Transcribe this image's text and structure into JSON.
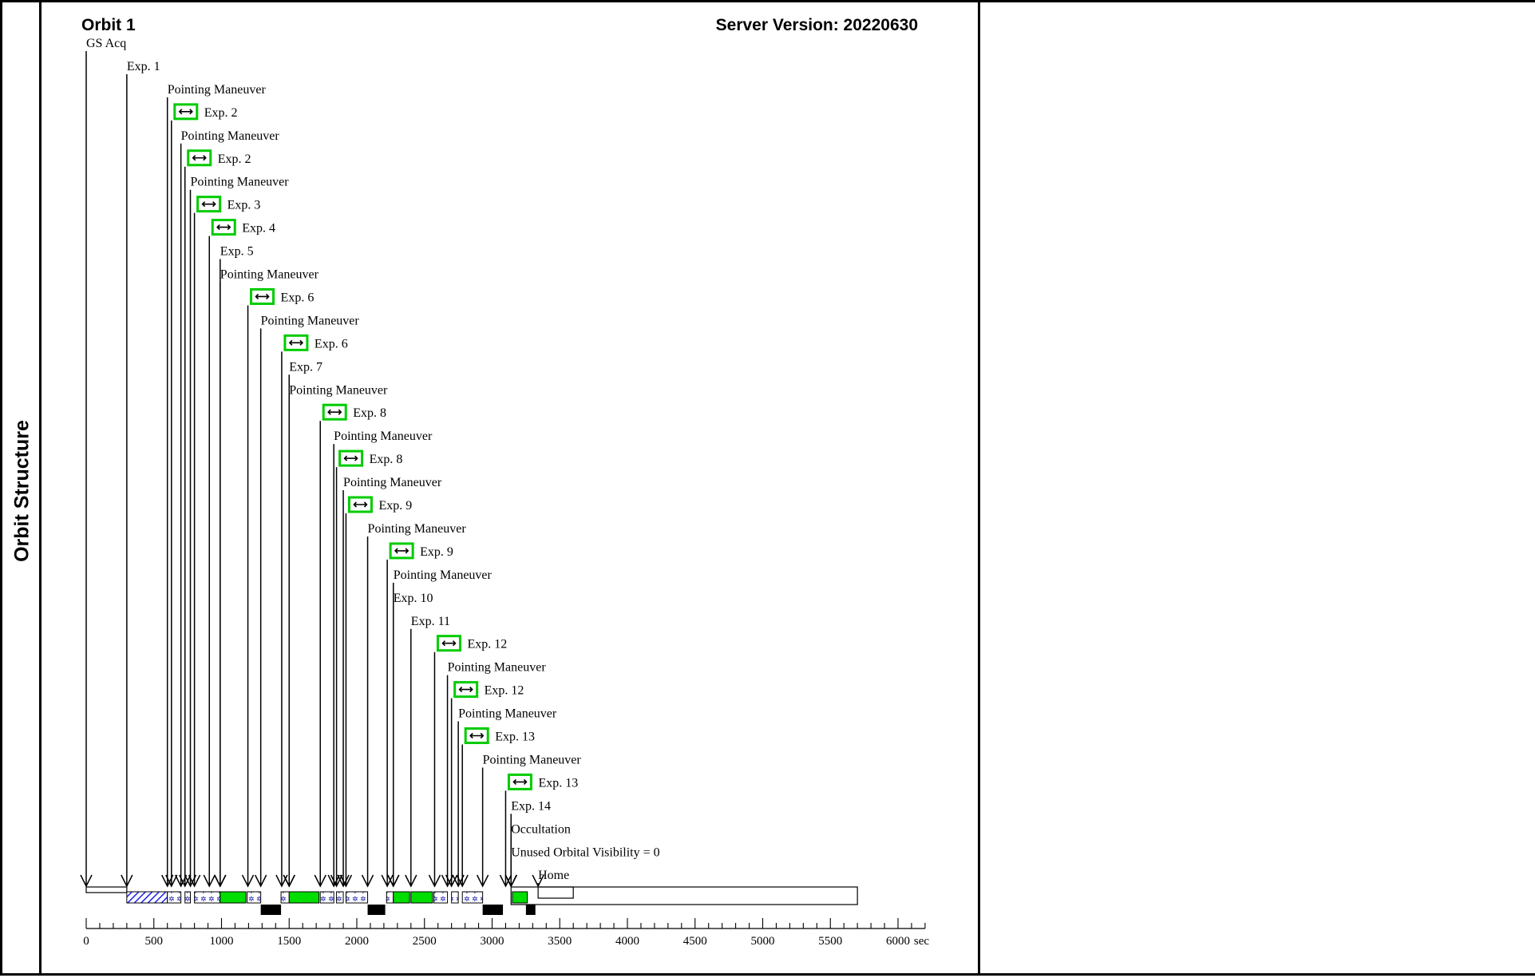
{
  "side_title": "Orbit Structure",
  "orbit_title": "Orbit 1",
  "server_version": "Server Version: 20220630",
  "axis": {
    "unit": "sec",
    "min": 0,
    "max": 6200,
    "major_step": 500,
    "tick_labels": [
      "0",
      "500",
      "1000",
      "1500",
      "2000",
      "2500",
      "3000",
      "3500",
      "4000",
      "4500",
      "5000",
      "5500",
      "6000"
    ]
  },
  "colors": {
    "exposure": "#00dd00",
    "guide_box": "#00cc00",
    "hatch": "#2222ee",
    "outline": "#000000"
  },
  "events": [
    {
      "label": "GS Acq",
      "t": 0,
      "icon": false
    },
    {
      "label": "Exp. 1",
      "t": 300,
      "icon": false
    },
    {
      "label": "Pointing Maneuver",
      "t": 600,
      "icon": false
    },
    {
      "label": "Exp. 2",
      "t": 630,
      "icon": true
    },
    {
      "label": "Pointing Maneuver",
      "t": 700,
      "icon": false
    },
    {
      "label": "Exp. 2",
      "t": 730,
      "icon": true
    },
    {
      "label": "Pointing Maneuver",
      "t": 770,
      "icon": false
    },
    {
      "label": "Exp. 3",
      "t": 800,
      "icon": true
    },
    {
      "label": "Exp. 4",
      "t": 910,
      "icon": true
    },
    {
      "label": "Exp. 5",
      "t": 990,
      "icon": false
    },
    {
      "label": "Pointing Maneuver",
      "t": 990,
      "icon": false
    },
    {
      "label": "Exp. 6",
      "t": 1195,
      "icon": true
    },
    {
      "label": "Pointing Maneuver",
      "t": 1290,
      "icon": false
    },
    {
      "label": "Exp. 6",
      "t": 1445,
      "icon": true
    },
    {
      "label": "Exp. 7",
      "t": 1500,
      "icon": false
    },
    {
      "label": "Pointing Maneuver",
      "t": 1500,
      "icon": false
    },
    {
      "label": "Exp. 8",
      "t": 1730,
      "icon": true
    },
    {
      "label": "Pointing Maneuver",
      "t": 1830,
      "icon": false
    },
    {
      "label": "Exp. 8",
      "t": 1850,
      "icon": true
    },
    {
      "label": "Pointing Maneuver",
      "t": 1900,
      "icon": false
    },
    {
      "label": "Exp. 9",
      "t": 1920,
      "icon": true
    },
    {
      "label": "Pointing Maneuver",
      "t": 2080,
      "icon": false
    },
    {
      "label": "Exp. 9",
      "t": 2225,
      "icon": true
    },
    {
      "label": "Pointing Maneuver",
      "t": 2270,
      "icon": false
    },
    {
      "label": "Exp. 10",
      "t": 2270,
      "icon": false
    },
    {
      "label": "Exp. 11",
      "t": 2400,
      "icon": false
    },
    {
      "label": "Exp. 12",
      "t": 2575,
      "icon": true
    },
    {
      "label": "Pointing Maneuver",
      "t": 2670,
      "icon": false
    },
    {
      "label": "Exp. 12",
      "t": 2700,
      "icon": true
    },
    {
      "label": "Pointing Maneuver",
      "t": 2750,
      "icon": false
    },
    {
      "label": "Exp. 13",
      "t": 2780,
      "icon": true
    },
    {
      "label": "Pointing Maneuver",
      "t": 2930,
      "icon": false
    },
    {
      "label": "Exp. 13",
      "t": 3100,
      "icon": true
    },
    {
      "label": "Exp. 14",
      "t": 3140,
      "icon": false
    },
    {
      "label": "Occultation",
      "t": 3140,
      "icon": false
    },
    {
      "label": "Unused Orbital Visibility = 0",
      "t": 3140,
      "icon": false
    },
    {
      "label": "Home",
      "t": 3340,
      "icon": false
    }
  ],
  "timeline": {
    "outline_spans": [
      [
        0,
        300
      ],
      [
        3140,
        5700
      ],
      [
        3340,
        3600
      ]
    ],
    "hatched_spans": [
      [
        300,
        600
      ]
    ],
    "dotted_spans": [
      [
        600,
        700
      ],
      [
        730,
        770
      ],
      [
        800,
        990
      ],
      [
        1190,
        1290
      ],
      [
        1440,
        1500
      ],
      [
        1730,
        1830
      ],
      [
        1850,
        1900
      ],
      [
        1920,
        2080
      ],
      [
        2220,
        2270
      ],
      [
        2570,
        2670
      ],
      [
        2700,
        2750
      ],
      [
        2780,
        2930
      ]
    ],
    "exposure_spans": [
      [
        990,
        1180
      ],
      [
        1500,
        1720
      ],
      [
        2270,
        2390
      ],
      [
        2400,
        2560
      ],
      [
        3150,
        3260
      ]
    ],
    "occultation_bars": [
      [
        1290,
        1440
      ],
      [
        2080,
        2210
      ],
      [
        2930,
        3080
      ],
      [
        3250,
        3320
      ]
    ]
  }
}
